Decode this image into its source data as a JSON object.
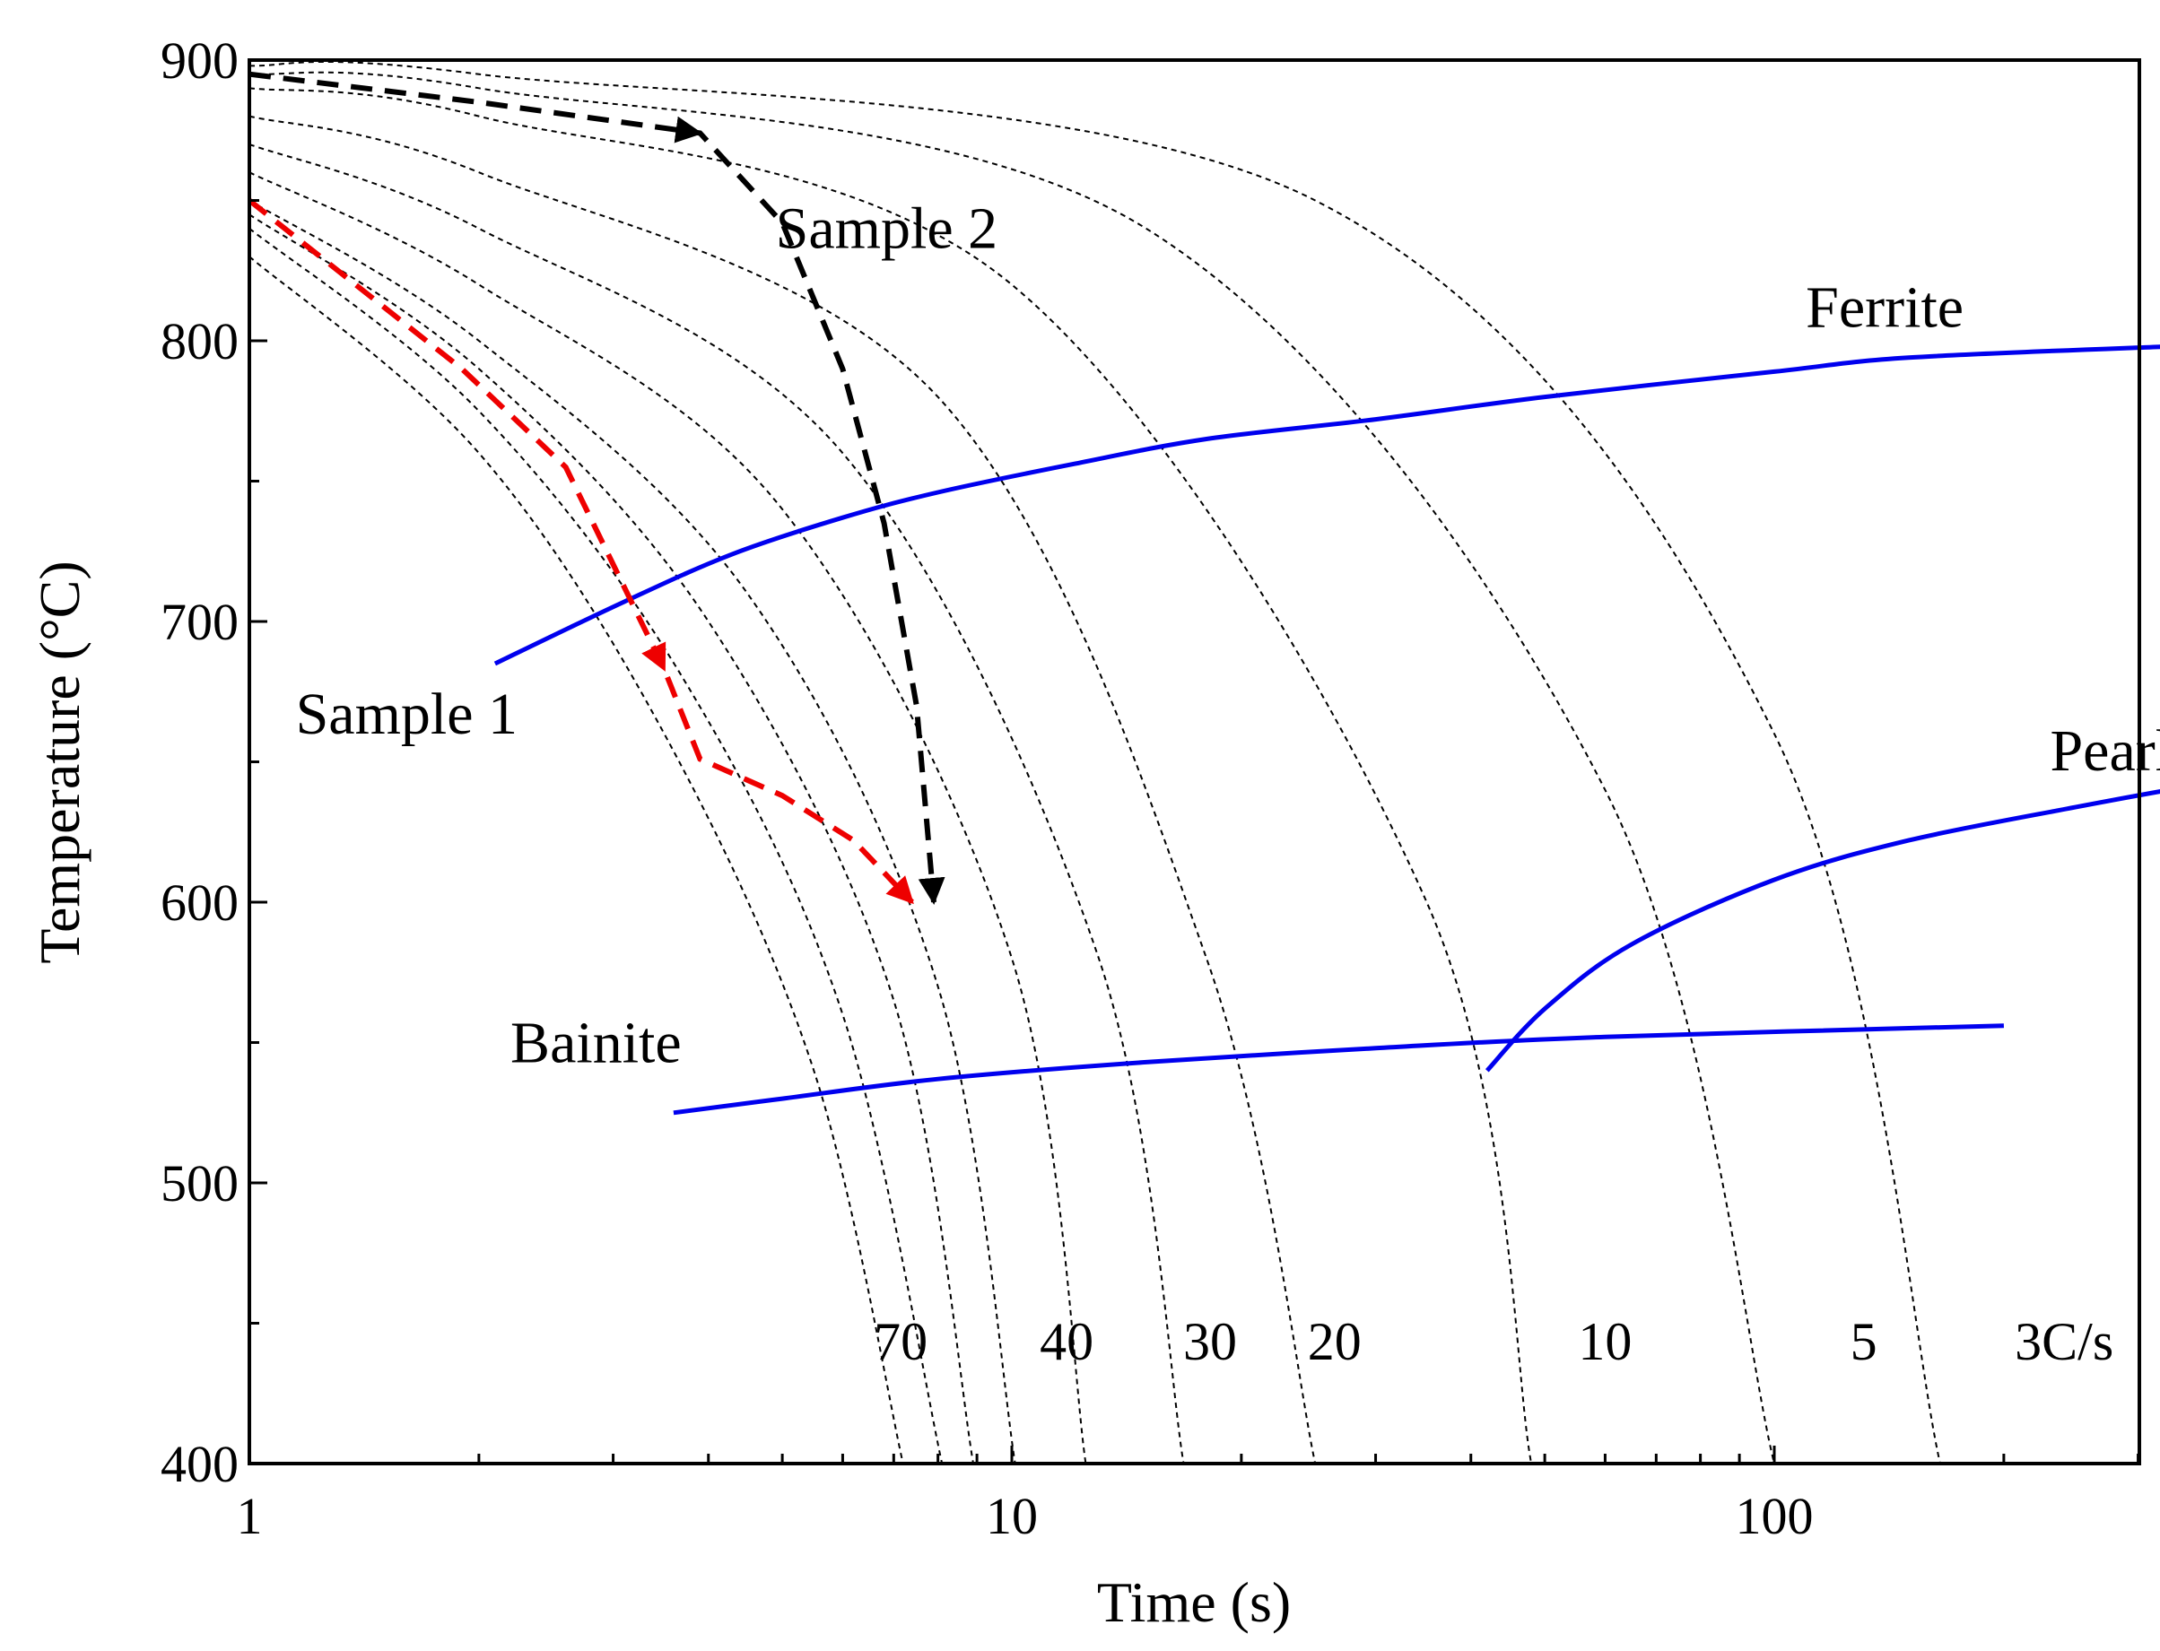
{
  "chart_data": {
    "type": "line",
    "title": "",
    "xlabel": "Time (s)",
    "ylabel": "Temperature (°C)",
    "xscale": "log",
    "xlim": [
      1,
      400
    ],
    "ylim": [
      400,
      900
    ],
    "grid": false,
    "x_ticks": [
      1,
      10,
      100
    ],
    "x_tick_labels": [
      "1",
      "10",
      "100"
    ],
    "y_ticks": [
      400,
      500,
      600,
      700,
      800,
      900
    ],
    "y_tick_labels": [
      "400",
      "500",
      "600",
      "700",
      "800",
      "900"
    ],
    "colors": {
      "transformation": "#0000ee",
      "cooling": "#000000",
      "sample1": "#ee0000",
      "sample2": "#000000"
    },
    "cooling_rates": [
      {
        "name": "70",
        "points": [
          [
            1,
            830
          ],
          [
            2,
            760
          ],
          [
            3.5,
            660
          ],
          [
            5.5,
            540
          ],
          [
            7.2,
            400
          ]
        ]
      },
      {
        "name": "",
        "points": [
          [
            1,
            840
          ],
          [
            2,
            775
          ],
          [
            3.7,
            680
          ],
          [
            6,
            560
          ],
          [
            8.1,
            400
          ]
        ]
      },
      {
        "name": "",
        "points": [
          [
            1,
            845
          ],
          [
            2,
            790
          ],
          [
            4,
            700
          ],
          [
            7,
            565
          ],
          [
            8.9,
            400
          ]
        ]
      },
      {
        "name": "40",
        "points": [
          [
            1,
            850
          ],
          [
            2,
            800
          ],
          [
            4.5,
            710
          ],
          [
            8,
            570
          ],
          [
            10.1,
            400
          ]
        ]
      },
      {
        "name": "",
        "points": [
          [
            1,
            860
          ],
          [
            2,
            820
          ],
          [
            5,
            740
          ],
          [
            10,
            580
          ],
          [
            12.5,
            400
          ]
        ]
      },
      {
        "name": "30",
        "points": [
          [
            1,
            870
          ],
          [
            2,
            840
          ],
          [
            6,
            760
          ],
          [
            13,
            580
          ],
          [
            16.8,
            400
          ]
        ]
      },
      {
        "name": "20",
        "points": [
          [
            1,
            880
          ],
          [
            2,
            860
          ],
          [
            8,
            780
          ],
          [
            18,
            580
          ],
          [
            25,
            400
          ]
        ]
      },
      {
        "name": "10",
        "points": [
          [
            1,
            890
          ],
          [
            2,
            880
          ],
          [
            10,
            820
          ],
          [
            35,
            600
          ],
          [
            48,
            400
          ]
        ]
      },
      {
        "name": "5",
        "points": [
          [
            1,
            895
          ],
          [
            2,
            890
          ],
          [
            15,
            840
          ],
          [
            60,
            640
          ],
          [
            100,
            400
          ]
        ]
      },
      {
        "name": "3C/s",
        "points": [
          [
            1,
            898
          ],
          [
            2,
            895
          ],
          [
            25,
            850
          ],
          [
            100,
            660
          ],
          [
            165,
            400
          ]
        ]
      }
    ],
    "series": [
      {
        "name": "Ferrite",
        "points": [
          [
            2.1,
            685
          ],
          [
            3.1,
            707
          ],
          [
            4.3,
            724
          ],
          [
            6,
            737
          ],
          [
            8,
            746
          ],
          [
            12,
            756
          ],
          [
            18,
            765
          ],
          [
            30,
            772
          ],
          [
            50,
            780
          ],
          [
            100,
            789
          ],
          [
            150,
            794
          ],
          [
            330,
            798
          ]
        ]
      },
      {
        "name": "Pearlite",
        "points": [
          [
            42,
            540
          ],
          [
            50,
            562
          ],
          [
            65,
            585
          ],
          [
            100,
            608
          ],
          [
            150,
            622
          ],
          [
            250,
            634
          ],
          [
            345,
            641
          ]
        ]
      },
      {
        "name": "Bainite",
        "points": [
          [
            3.6,
            525
          ],
          [
            5,
            530
          ],
          [
            8,
            537
          ],
          [
            15,
            543
          ],
          [
            30,
            548
          ],
          [
            60,
            552
          ],
          [
            200,
            556
          ]
        ]
      },
      {
        "name": "Sample 1",
        "points": [
          [
            1,
            850
          ],
          [
            1.9,
            790
          ],
          [
            2.6,
            755
          ],
          [
            3.5,
            683
          ],
          [
            3.9,
            651
          ],
          [
            5,
            638
          ],
          [
            6.2,
            622
          ],
          [
            7.4,
            600
          ]
        ]
      },
      {
        "name": "Sample 2",
        "points": [
          [
            1,
            895
          ],
          [
            2,
            885
          ],
          [
            3.9,
            874
          ],
          [
            5,
            842
          ],
          [
            6,
            790
          ],
          [
            6.8,
            735
          ],
          [
            7.5,
            670
          ],
          [
            7.9,
            600
          ]
        ]
      }
    ],
    "annotations": [
      {
        "text": "Ferrite",
        "x": 110,
        "y": 805
      },
      {
        "text": "Pearlite",
        "x": 230,
        "y": 647
      },
      {
        "text": "Bainite",
        "x": 2.2,
        "y": 543
      },
      {
        "text": "Sample 1",
        "x": 1.15,
        "y": 660,
        "color": "#ee0000"
      },
      {
        "text": "Sample 2",
        "x": 4.9,
        "y": 833
      }
    ],
    "rate_labels": [
      {
        "text": "70",
        "x": 7.15,
        "y": 437
      },
      {
        "text": "40",
        "x": 11.8,
        "y": 437
      },
      {
        "text": "30",
        "x": 18.2,
        "y": 437
      },
      {
        "text": "20",
        "x": 26.5,
        "y": 437
      },
      {
        "text": "10",
        "x": 60,
        "y": 437
      },
      {
        "text": "5",
        "x": 131,
        "y": 437
      },
      {
        "text": "3C/s",
        "x": 240,
        "y": 437
      }
    ]
  }
}
